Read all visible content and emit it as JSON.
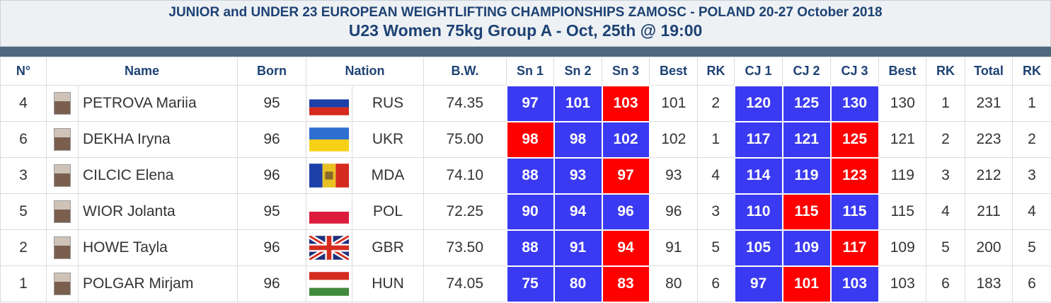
{
  "header": {
    "title": "JUNIOR and UNDER 23 EUROPEAN WEIGHTLIFTING CHAMPIONSHIPS ZAMOSC - POLAND 20-27 October 2018",
    "subtitle": "U23 Women 75kg Group A - Oct, 25th @ 19:00"
  },
  "attempt_colors": {
    "good": "#3a3af2",
    "no_lift": "#ff0000"
  },
  "table": {
    "columns": [
      "N°",
      "Name",
      "Born",
      "Nation",
      "B.W.",
      "Sn 1",
      "Sn 2",
      "Sn 3",
      "Best",
      "RK",
      "CJ 1",
      "CJ 2",
      "CJ 3",
      "Best",
      "RK",
      "Total",
      "RK"
    ],
    "rows": [
      {
        "no": "4",
        "name": "PETROVA Mariia",
        "born": "95",
        "flag": {
          "dir": "h",
          "colors": [
            "#ffffff",
            "#1c3fa8",
            "#d52b1e"
          ]
        },
        "nation": "RUS",
        "bw": "74.35",
        "snatch": [
          {
            "value": "97",
            "good": true
          },
          {
            "value": "101",
            "good": true
          },
          {
            "value": "103",
            "good": false
          }
        ],
        "snatch_best": "101",
        "snatch_rank": "2",
        "cj": [
          {
            "value": "120",
            "good": true
          },
          {
            "value": "125",
            "good": true
          },
          {
            "value": "130",
            "good": true
          }
        ],
        "cj_best": "130",
        "cj_rank": "1",
        "total": "231",
        "rank": "1"
      },
      {
        "no": "6",
        "name": "DEKHA Iryna",
        "born": "96",
        "flag": {
          "dir": "h",
          "colors": [
            "#2f6fd1",
            "#f7d117"
          ]
        },
        "nation": "UKR",
        "bw": "75.00",
        "snatch": [
          {
            "value": "98",
            "good": false
          },
          {
            "value": "98",
            "good": true
          },
          {
            "value": "102",
            "good": true
          }
        ],
        "snatch_best": "102",
        "snatch_rank": "1",
        "cj": [
          {
            "value": "117",
            "good": true
          },
          {
            "value": "121",
            "good": true
          },
          {
            "value": "125",
            "good": false
          }
        ],
        "cj_best": "121",
        "cj_rank": "2",
        "total": "223",
        "rank": "2"
      },
      {
        "no": "3",
        "name": "CILCIC Elena",
        "born": "96",
        "flag": {
          "dir": "v",
          "colors": [
            "#1c3fa8",
            "#e8c224",
            "#d52b1e"
          ]
        },
        "nation": "MDA",
        "bw": "74.10",
        "snatch": [
          {
            "value": "88",
            "good": true
          },
          {
            "value": "93",
            "good": true
          },
          {
            "value": "97",
            "good": false
          }
        ],
        "snatch_best": "93",
        "snatch_rank": "4",
        "cj": [
          {
            "value": "114",
            "good": true
          },
          {
            "value": "119",
            "good": true
          },
          {
            "value": "123",
            "good": false
          }
        ],
        "cj_best": "119",
        "cj_rank": "3",
        "total": "212",
        "rank": "3"
      },
      {
        "no": "5",
        "name": "WIOR Jolanta",
        "born": "95",
        "flag": {
          "dir": "h",
          "colors": [
            "#ffffff",
            "#dc1c3c"
          ]
        },
        "nation": "POL",
        "bw": "72.25",
        "snatch": [
          {
            "value": "90",
            "good": true
          },
          {
            "value": "94",
            "good": true
          },
          {
            "value": "96",
            "good": true
          }
        ],
        "snatch_best": "96",
        "snatch_rank": "3",
        "cj": [
          {
            "value": "110",
            "good": true
          },
          {
            "value": "115",
            "good": false
          },
          {
            "value": "115",
            "good": true
          }
        ],
        "cj_best": "115",
        "cj_rank": "4",
        "total": "211",
        "rank": "4"
      },
      {
        "no": "2",
        "name": "HOWE Tayla",
        "born": "96",
        "flag": {
          "dir": "uk",
          "colors": [
            "#1f2f7a",
            "#ffffff",
            "#d52b1e"
          ]
        },
        "nation": "GBR",
        "bw": "73.50",
        "snatch": [
          {
            "value": "88",
            "good": true
          },
          {
            "value": "91",
            "good": true
          },
          {
            "value": "94",
            "good": false
          }
        ],
        "snatch_best": "91",
        "snatch_rank": "5",
        "cj": [
          {
            "value": "105",
            "good": true
          },
          {
            "value": "109",
            "good": true
          },
          {
            "value": "117",
            "good": false
          }
        ],
        "cj_best": "109",
        "cj_rank": "5",
        "total": "200",
        "rank": "5"
      },
      {
        "no": "1",
        "name": "POLGAR Mirjam",
        "born": "96",
        "flag": {
          "dir": "h",
          "colors": [
            "#d52b1e",
            "#ffffff",
            "#3f8a3a"
          ]
        },
        "nation": "HUN",
        "bw": "74.05",
        "snatch": [
          {
            "value": "75",
            "good": true
          },
          {
            "value": "80",
            "good": true
          },
          {
            "value": "83",
            "good": false
          }
        ],
        "snatch_best": "80",
        "snatch_rank": "6",
        "cj": [
          {
            "value": "97",
            "good": true
          },
          {
            "value": "101",
            "good": false
          },
          {
            "value": "103",
            "good": true
          }
        ],
        "cj_best": "103",
        "cj_rank": "6",
        "total": "183",
        "rank": "6"
      }
    ]
  }
}
